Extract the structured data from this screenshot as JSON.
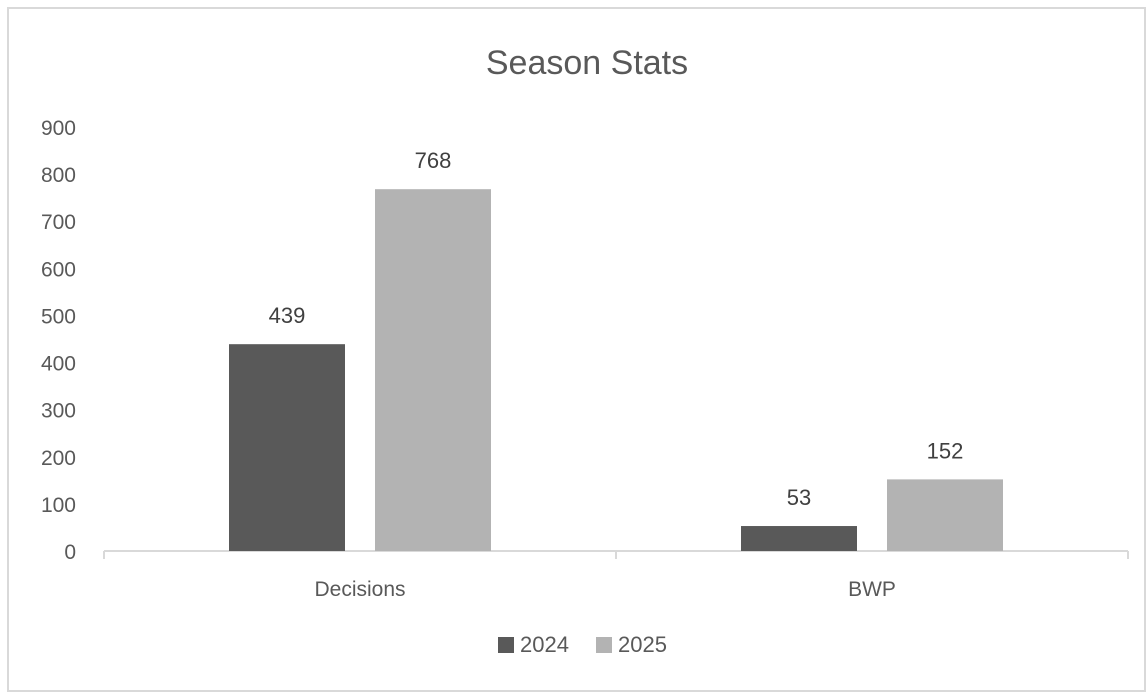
{
  "chart_data": {
    "type": "bar",
    "title": "Season Stats",
    "categories": [
      "Decisions",
      "BWP"
    ],
    "series": [
      {
        "name": "2024",
        "values": [
          439,
          53
        ],
        "color": "#595959"
      },
      {
        "name": "2025",
        "values": [
          768,
          152
        ],
        "color": "#b3b3b3"
      }
    ],
    "ylim": [
      0,
      900
    ],
    "yticks": [
      0,
      100,
      200,
      300,
      400,
      500,
      600,
      700,
      800,
      900
    ],
    "grid": false,
    "data_labels": true,
    "legend_position": "bottom"
  }
}
